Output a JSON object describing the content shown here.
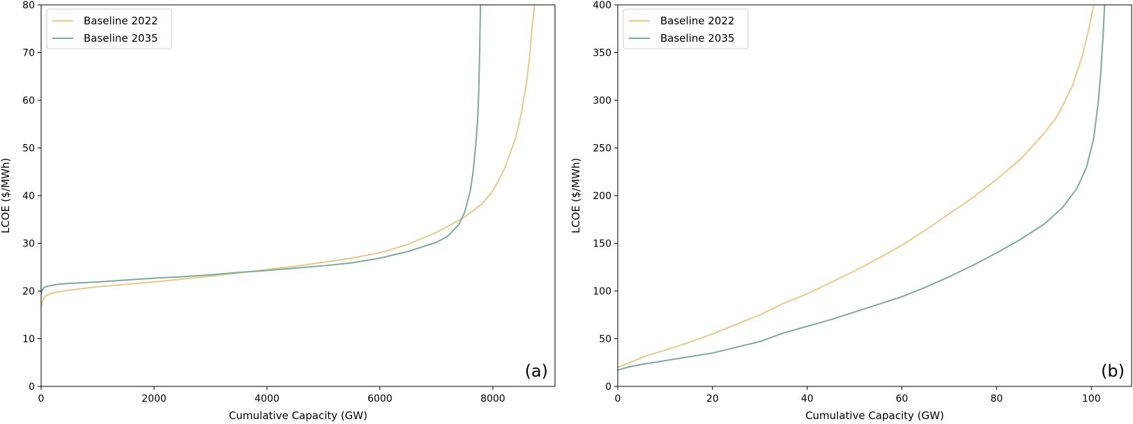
{
  "chart_data": [
    {
      "type": "line",
      "panel_label": "(a)",
      "xlabel": "Cumulative Capacity (GW)",
      "ylabel": "LCOE ($/MWh)",
      "xlim": [
        0,
        9100
      ],
      "ylim": [
        0,
        80
      ],
      "xticks": [
        0,
        2000,
        4000,
        6000,
        8000
      ],
      "yticks": [
        0,
        10,
        20,
        30,
        40,
        50,
        60,
        70,
        80
      ],
      "grid": false,
      "legend_position": "top-left",
      "series": [
        {
          "name": "Baseline 2022",
          "color": "#e8c98c",
          "x": [
            0,
            20,
            60,
            150,
            300,
            500,
            1000,
            1500,
            2000,
            2500,
            3000,
            3500,
            4000,
            4500,
            5000,
            5500,
            6000,
            6500,
            7000,
            7500,
            7800,
            8000,
            8200,
            8400,
            8500,
            8600,
            8650,
            8700,
            8740
          ],
          "y": [
            16.5,
            17.8,
            18.8,
            19.4,
            19.8,
            20.2,
            20.9,
            21.4,
            21.9,
            22.5,
            23.1,
            23.8,
            24.5,
            25.2,
            26.0,
            26.9,
            28.0,
            29.8,
            32.3,
            35.5,
            38.2,
            41.0,
            45.5,
            52.0,
            57.0,
            64.0,
            69.0,
            76.0,
            80.0
          ]
        },
        {
          "name": "Baseline 2035",
          "color": "#7faa97",
          "x": [
            0,
            20,
            60,
            150,
            300,
            500,
            1000,
            1500,
            2000,
            2500,
            3000,
            3500,
            4000,
            4500,
            5000,
            5500,
            6000,
            6500,
            7000,
            7200,
            7400,
            7500,
            7600,
            7650,
            7700,
            7730,
            7750,
            7760,
            7770,
            7780
          ],
          "y": [
            19.5,
            20.3,
            20.8,
            21.1,
            21.4,
            21.6,
            21.9,
            22.3,
            22.7,
            23.0,
            23.4,
            23.9,
            24.3,
            24.8,
            25.3,
            25.9,
            26.9,
            28.3,
            30.2,
            31.5,
            34.0,
            36.5,
            41.0,
            45.0,
            51.0,
            56.0,
            62.0,
            67.0,
            73.0,
            80.0
          ]
        }
      ]
    },
    {
      "type": "line",
      "panel_label": "(b)",
      "xlabel": "Cumulative Capacity (GW)",
      "ylabel": "LCOE ($/MWh)",
      "xlim": [
        0,
        108.5
      ],
      "ylim": [
        0,
        400
      ],
      "xticks": [
        0,
        20,
        40,
        60,
        80,
        100
      ],
      "yticks": [
        0,
        50,
        100,
        150,
        200,
        250,
        300,
        350,
        400
      ],
      "grid": false,
      "legend_position": "top-left",
      "series": [
        {
          "name": "Baseline 2022",
          "color": "#e8c98c",
          "x": [
            0,
            3,
            6,
            10,
            15,
            20,
            25,
            30,
            35,
            40,
            45,
            50,
            55,
            60,
            65,
            70,
            75,
            80,
            85,
            90,
            93,
            96,
            98,
            99.5,
            100.5
          ],
          "y": [
            20,
            26,
            32,
            38,
            46,
            55,
            65,
            75,
            87,
            97,
            109,
            121,
            134,
            148,
            164,
            181,
            198,
            217,
            238,
            265,
            285,
            315,
            345,
            375,
            400
          ]
        },
        {
          "name": "Baseline 2035",
          "color": "#7faa97",
          "x": [
            0,
            2,
            5,
            10,
            15,
            20,
            25,
            30,
            35,
            40,
            45,
            50,
            55,
            60,
            65,
            70,
            75,
            80,
            85,
            90,
            94,
            97,
            99,
            100.5,
            101.5,
            102,
            102.5,
            102.8
          ],
          "y": [
            17,
            20,
            23,
            27,
            31,
            35,
            41,
            47,
            56,
            63,
            70,
            78,
            86,
            94,
            104,
            115,
            127,
            140,
            154,
            170,
            188,
            208,
            230,
            260,
            300,
            330,
            370,
            400
          ]
        }
      ]
    }
  ]
}
